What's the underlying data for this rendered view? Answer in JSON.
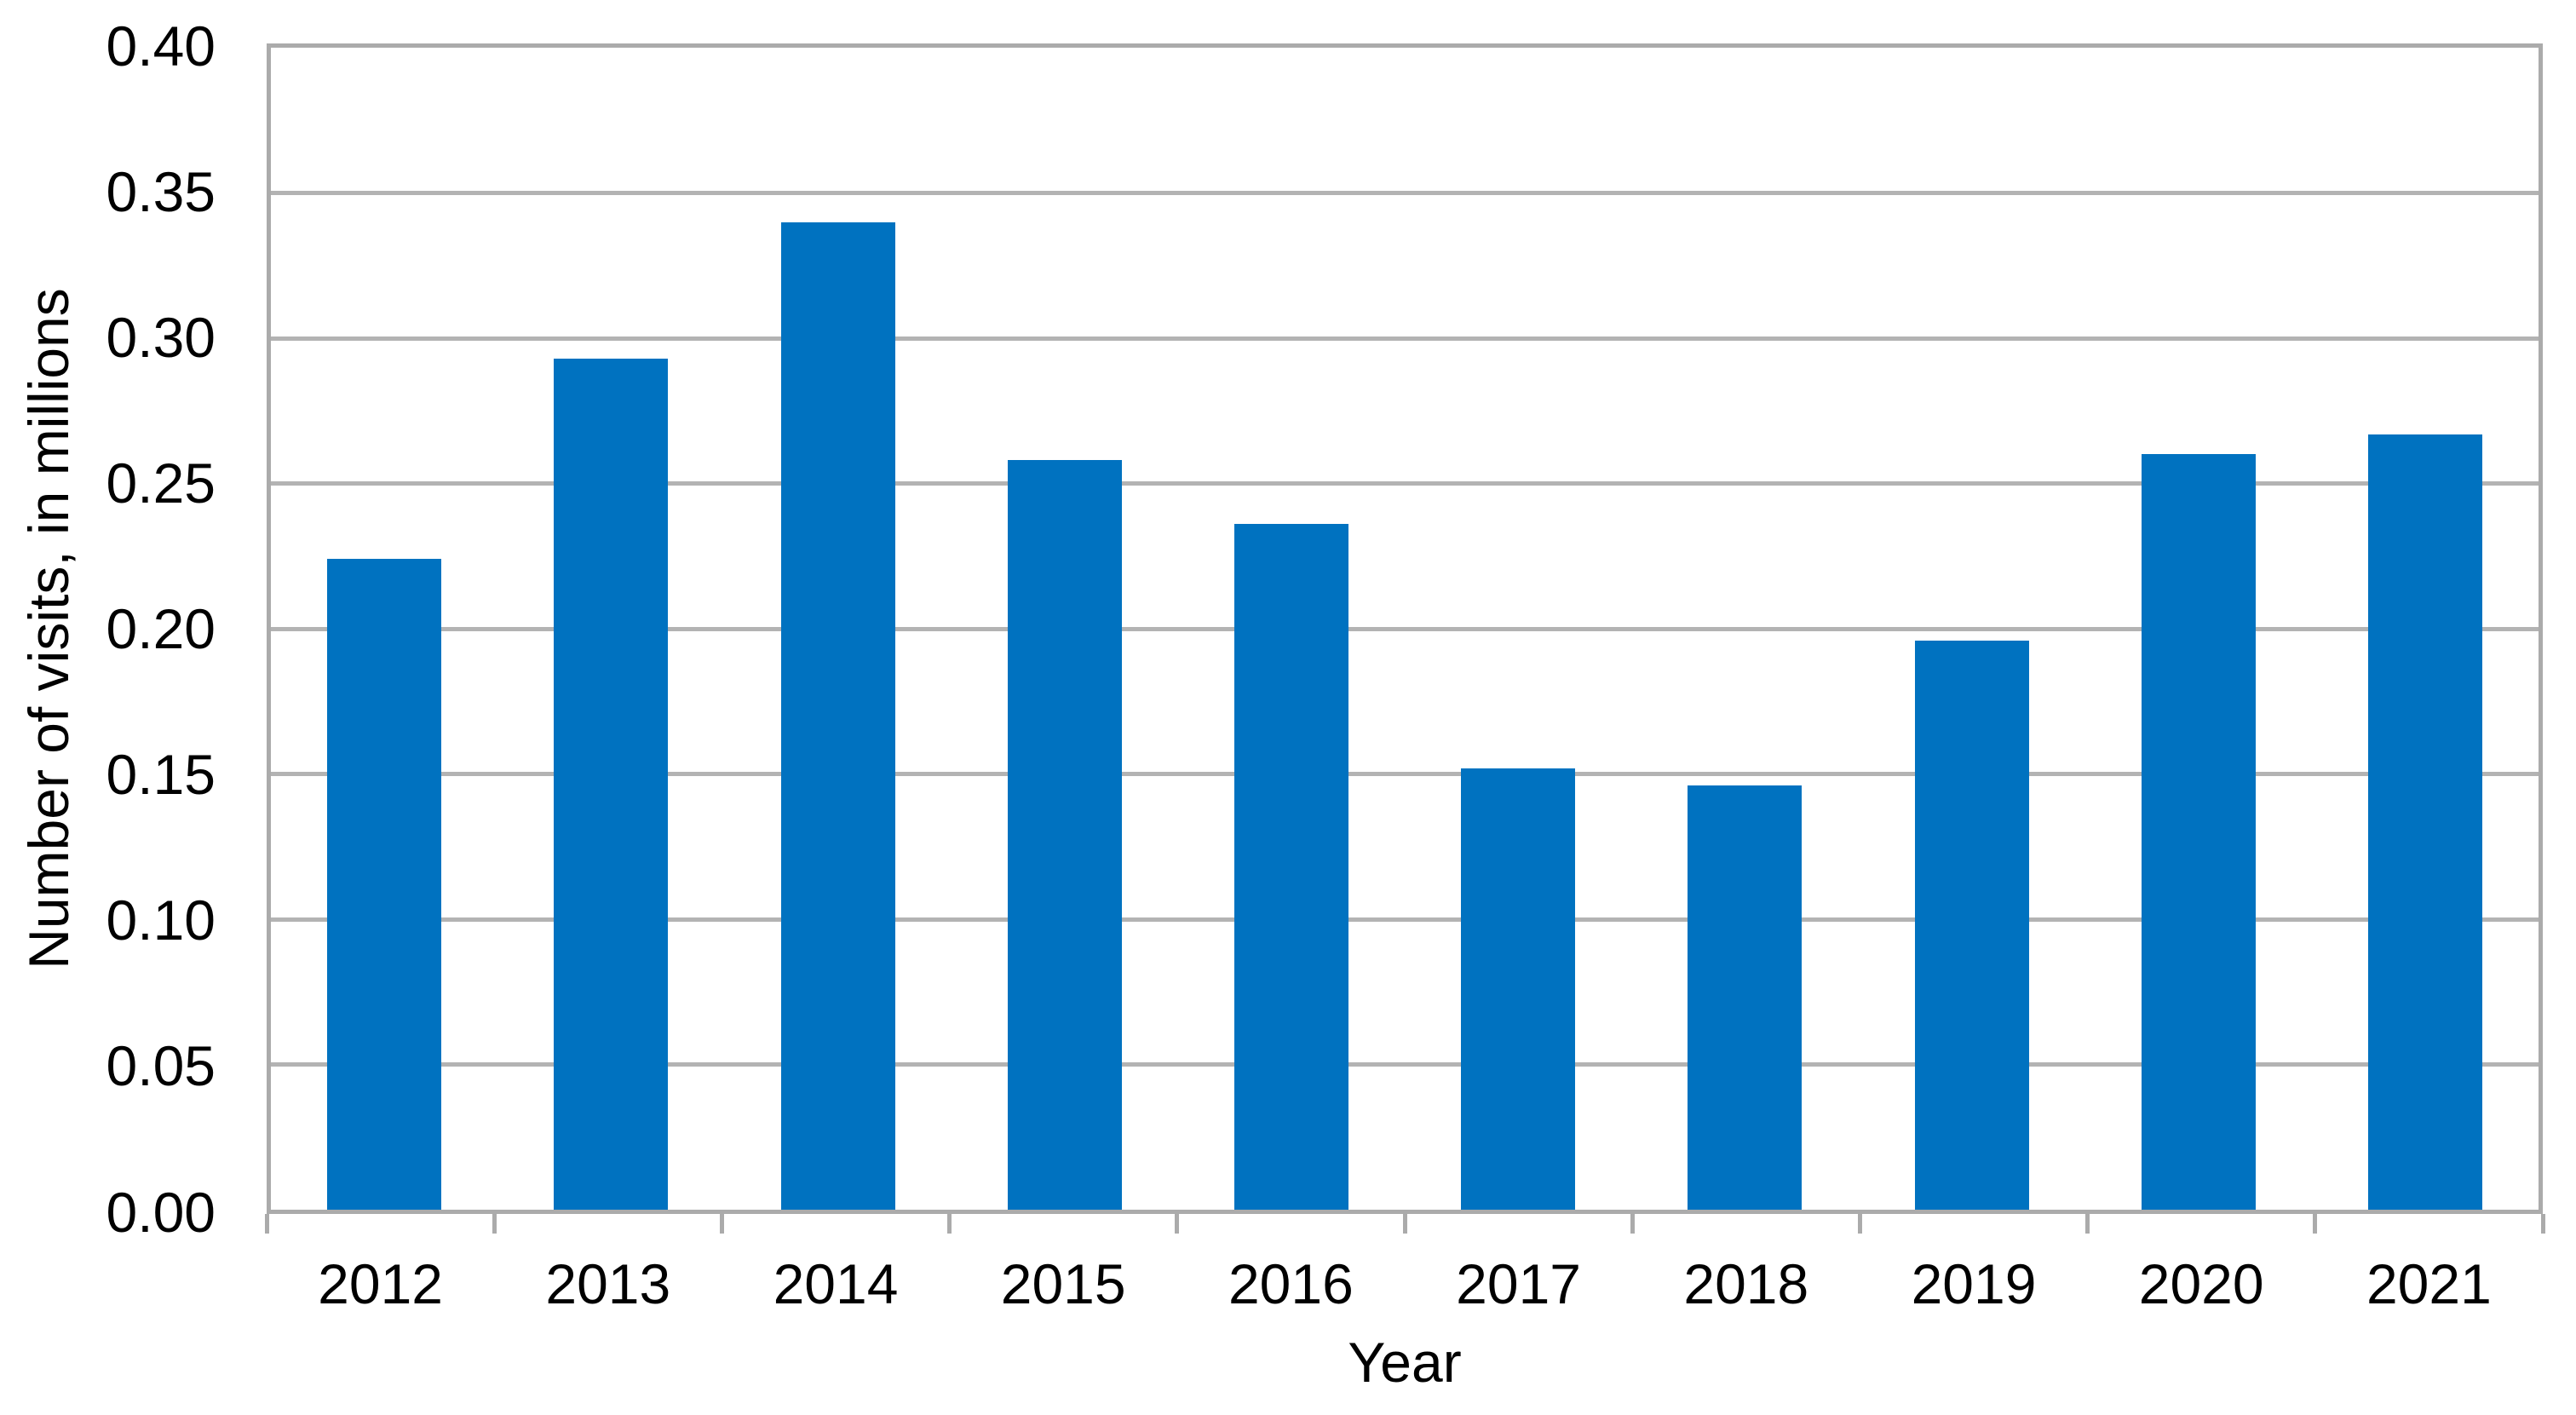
{
  "chart_data": {
    "type": "bar",
    "title": "",
    "categories": [
      "2012",
      "2013",
      "2014",
      "2015",
      "2016",
      "2017",
      "2018",
      "2019",
      "2020",
      "2021"
    ],
    "values": [
      0.224,
      0.293,
      0.34,
      0.258,
      0.236,
      0.152,
      0.146,
      0.196,
      0.26,
      0.267
    ],
    "series_name": "Number of visits",
    "xlabel": "Year",
    "ylabel": "Number of visits, in millions",
    "ylim": [
      0.0,
      0.4
    ],
    "ytick_step": 0.05,
    "ytick_labels": [
      "0.40",
      "0.35",
      "0.30",
      "0.25",
      "0.20",
      "0.15",
      "0.10",
      "0.05",
      "0.00"
    ],
    "grid": true,
    "legend": false,
    "colors": {
      "bar": "#0072C0",
      "gridline": "#B3B3B3",
      "axis_border": "#ABABAB",
      "text": "#000000",
      "background": "#FFFFFF"
    }
  }
}
